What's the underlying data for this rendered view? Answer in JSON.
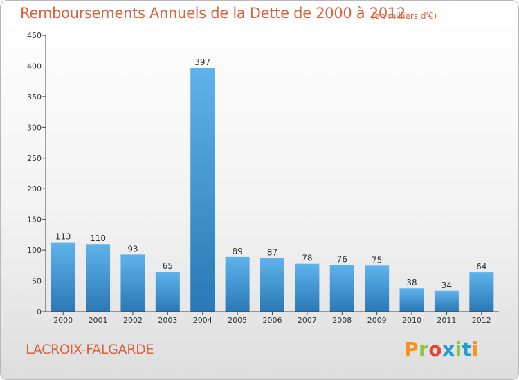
{
  "title": "Remboursements Annuels de la Dette de 2000 à 2012",
  "subtitle": "(en milliers d'€)",
  "commune": "LACROIX-FALGARDE",
  "logo": {
    "text": "Proxiti",
    "letter_colors": [
      "#f7941d",
      "#8dc63f",
      "#e8432e",
      "#1f9bd7",
      "#8dc63f",
      "#1f9bd7",
      "#f7941d"
    ]
  },
  "colors": {
    "title": "#d9633f",
    "bar_top": "#5fb3ec",
    "bar_bottom": "#2a78b5"
  },
  "chart_data": {
    "type": "bar",
    "categories": [
      "2000",
      "2001",
      "2002",
      "2003",
      "2004",
      "2005",
      "2006",
      "2007",
      "2008",
      "2009",
      "2010",
      "2011",
      "2012"
    ],
    "values": [
      113,
      110,
      93,
      65,
      397,
      89,
      87,
      78,
      76,
      75,
      38,
      34,
      64
    ],
    "ylim": [
      0,
      450
    ],
    "yticks": [
      0,
      50,
      100,
      150,
      200,
      250,
      300,
      350,
      400,
      450
    ],
    "grid": false,
    "data_labels": true
  }
}
